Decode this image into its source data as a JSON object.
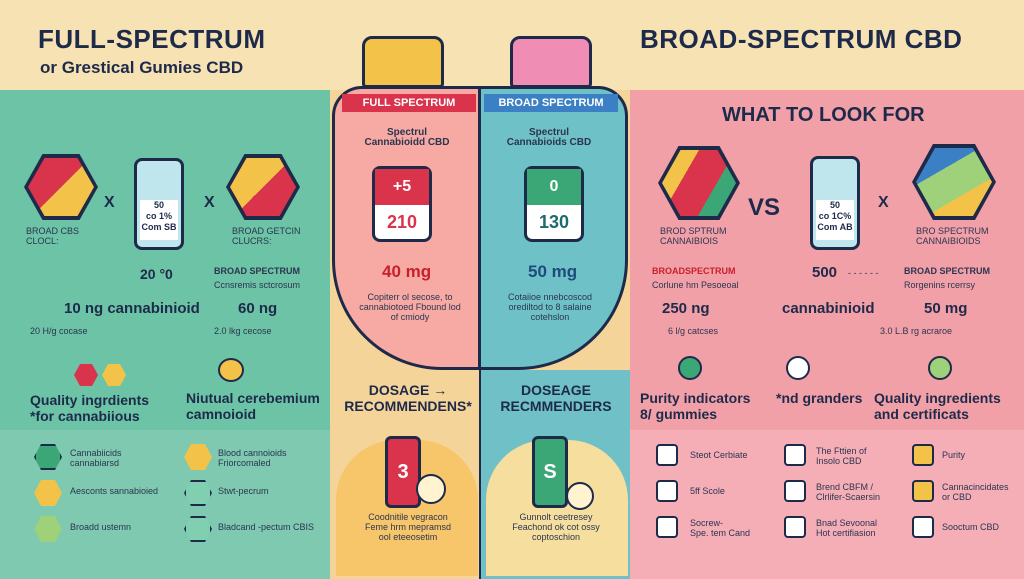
{
  "header": {
    "left_title": "FULL-SPECTRUM",
    "left_subtitle": "or Grestical Gumies CBD",
    "right_title": "BROAD-SPECTRUM CBD"
  },
  "left": {
    "hex_label": "BROAD CBS\nCLOCL:",
    "bottle_label": "50\nco 1%\nCom SB",
    "right_hex_label": "BROAD GETCIN\nCLUCRS:",
    "x1": "X",
    "x2": "X",
    "value_1": "20 °0",
    "broad_label": "BROAD SPECTRUM",
    "broad_sub": "Ccnsremis sctcrosum",
    "row_left": "10 ng cannabinioid",
    "row_right": "60 ng",
    "small_left": "20 H/g cocase",
    "small_right": "2.0 lkg cecose",
    "quality": "Quality ingrdients\n*for cannabiious",
    "natural": "Niutual cerebemium\ncamnoioid",
    "list_left": [
      "Cannabiicids\ncannabiarsd",
      "Aesconts sannabioied",
      "Broadd ustemn"
    ],
    "list_right": [
      "Blood cannoioids\nFriorcomaled",
      "Stwt-pecrum",
      "Bladcand -pectum CBIS"
    ]
  },
  "middle": {
    "full_bar": "FULL SPECTRUM",
    "broad_bar": "BROAD SPECTRUM",
    "full_caption": "Spectrul\nCannabioidd CBD",
    "broad_caption": "Spectrul\nCannabioids CBD",
    "full_top": "+5",
    "full_num": "210",
    "broad_top": "0",
    "broad_num": "130",
    "full_mg": "40 mg",
    "broad_mg": "50 mg",
    "full_note": "Copiterr ol secose, to\ncannabiotoed Fbound lod\nof cmiody",
    "broad_note": "Cotaiioe nnebcoscod\norediltod to 8 salaine\ncotehslon",
    "dosage_left": "DOSAGE →\nRECOMMENDENS*",
    "dosage_right": "DOSEAGE\nRECMMENDERS",
    "jar_left": "3",
    "jar_right": "S",
    "foot_left": "Coodnitile vegracon\nFeme hrm mepramsd\nool eteeosetim",
    "foot_right": "Gunnolt ceetresey\nFeachond ok cot ossy\ncoptoschion"
  },
  "right": {
    "look_for": "WHAT TO LOOK FOR",
    "hex_label": "BROD SPTRUM\nCANNAIBIOIS",
    "vs": "VS",
    "x": "X",
    "bottle_label": "50\nco 1C%\nCom AB",
    "hex2_label": "BRO SPECTRUM\nCANNAIBIOIDS",
    "broad_label": "BROADSPECTRUM",
    "broad_sub": "Corlune hm Pesoeoal",
    "val_500": "500",
    "dashes": "- - - - - -",
    "broad2": "BROAD SPECTRUM",
    "broad2_sub": "Rorgenins rcerrsy",
    "mg_250": "250 ng",
    "cannab": "cannabinioid",
    "mg_50": "50 mg",
    "small_1": "6 l/g catcses",
    "small_2": "3.0 L.B rg acraroe",
    "purity": "Purity indicators\n8/ gummies",
    "granders": "*nd granders",
    "quality": "Quality ingredients\nand certificats",
    "col1": [
      "Steot Cerbiate",
      "5ff Scole",
      "Socrew-\nSpe. tem Cand"
    ],
    "col2": [
      "The Fttien of\nInsolo CBD",
      "Brend CBFM /\nClrlifer-Scaersin",
      "Bnad Sevoonal\nHot certifiasion"
    ],
    "col3": [
      "Purity",
      "Cannacincidates\nor CBD",
      "Sooctum CBD"
    ]
  },
  "colors": {
    "mint": "#6cc3a5",
    "cream": "#f5d49a",
    "pink": "#f2a0a8",
    "navy": "#1e2a4a",
    "red": "#d9344b",
    "teal": "#3ba7a0"
  }
}
